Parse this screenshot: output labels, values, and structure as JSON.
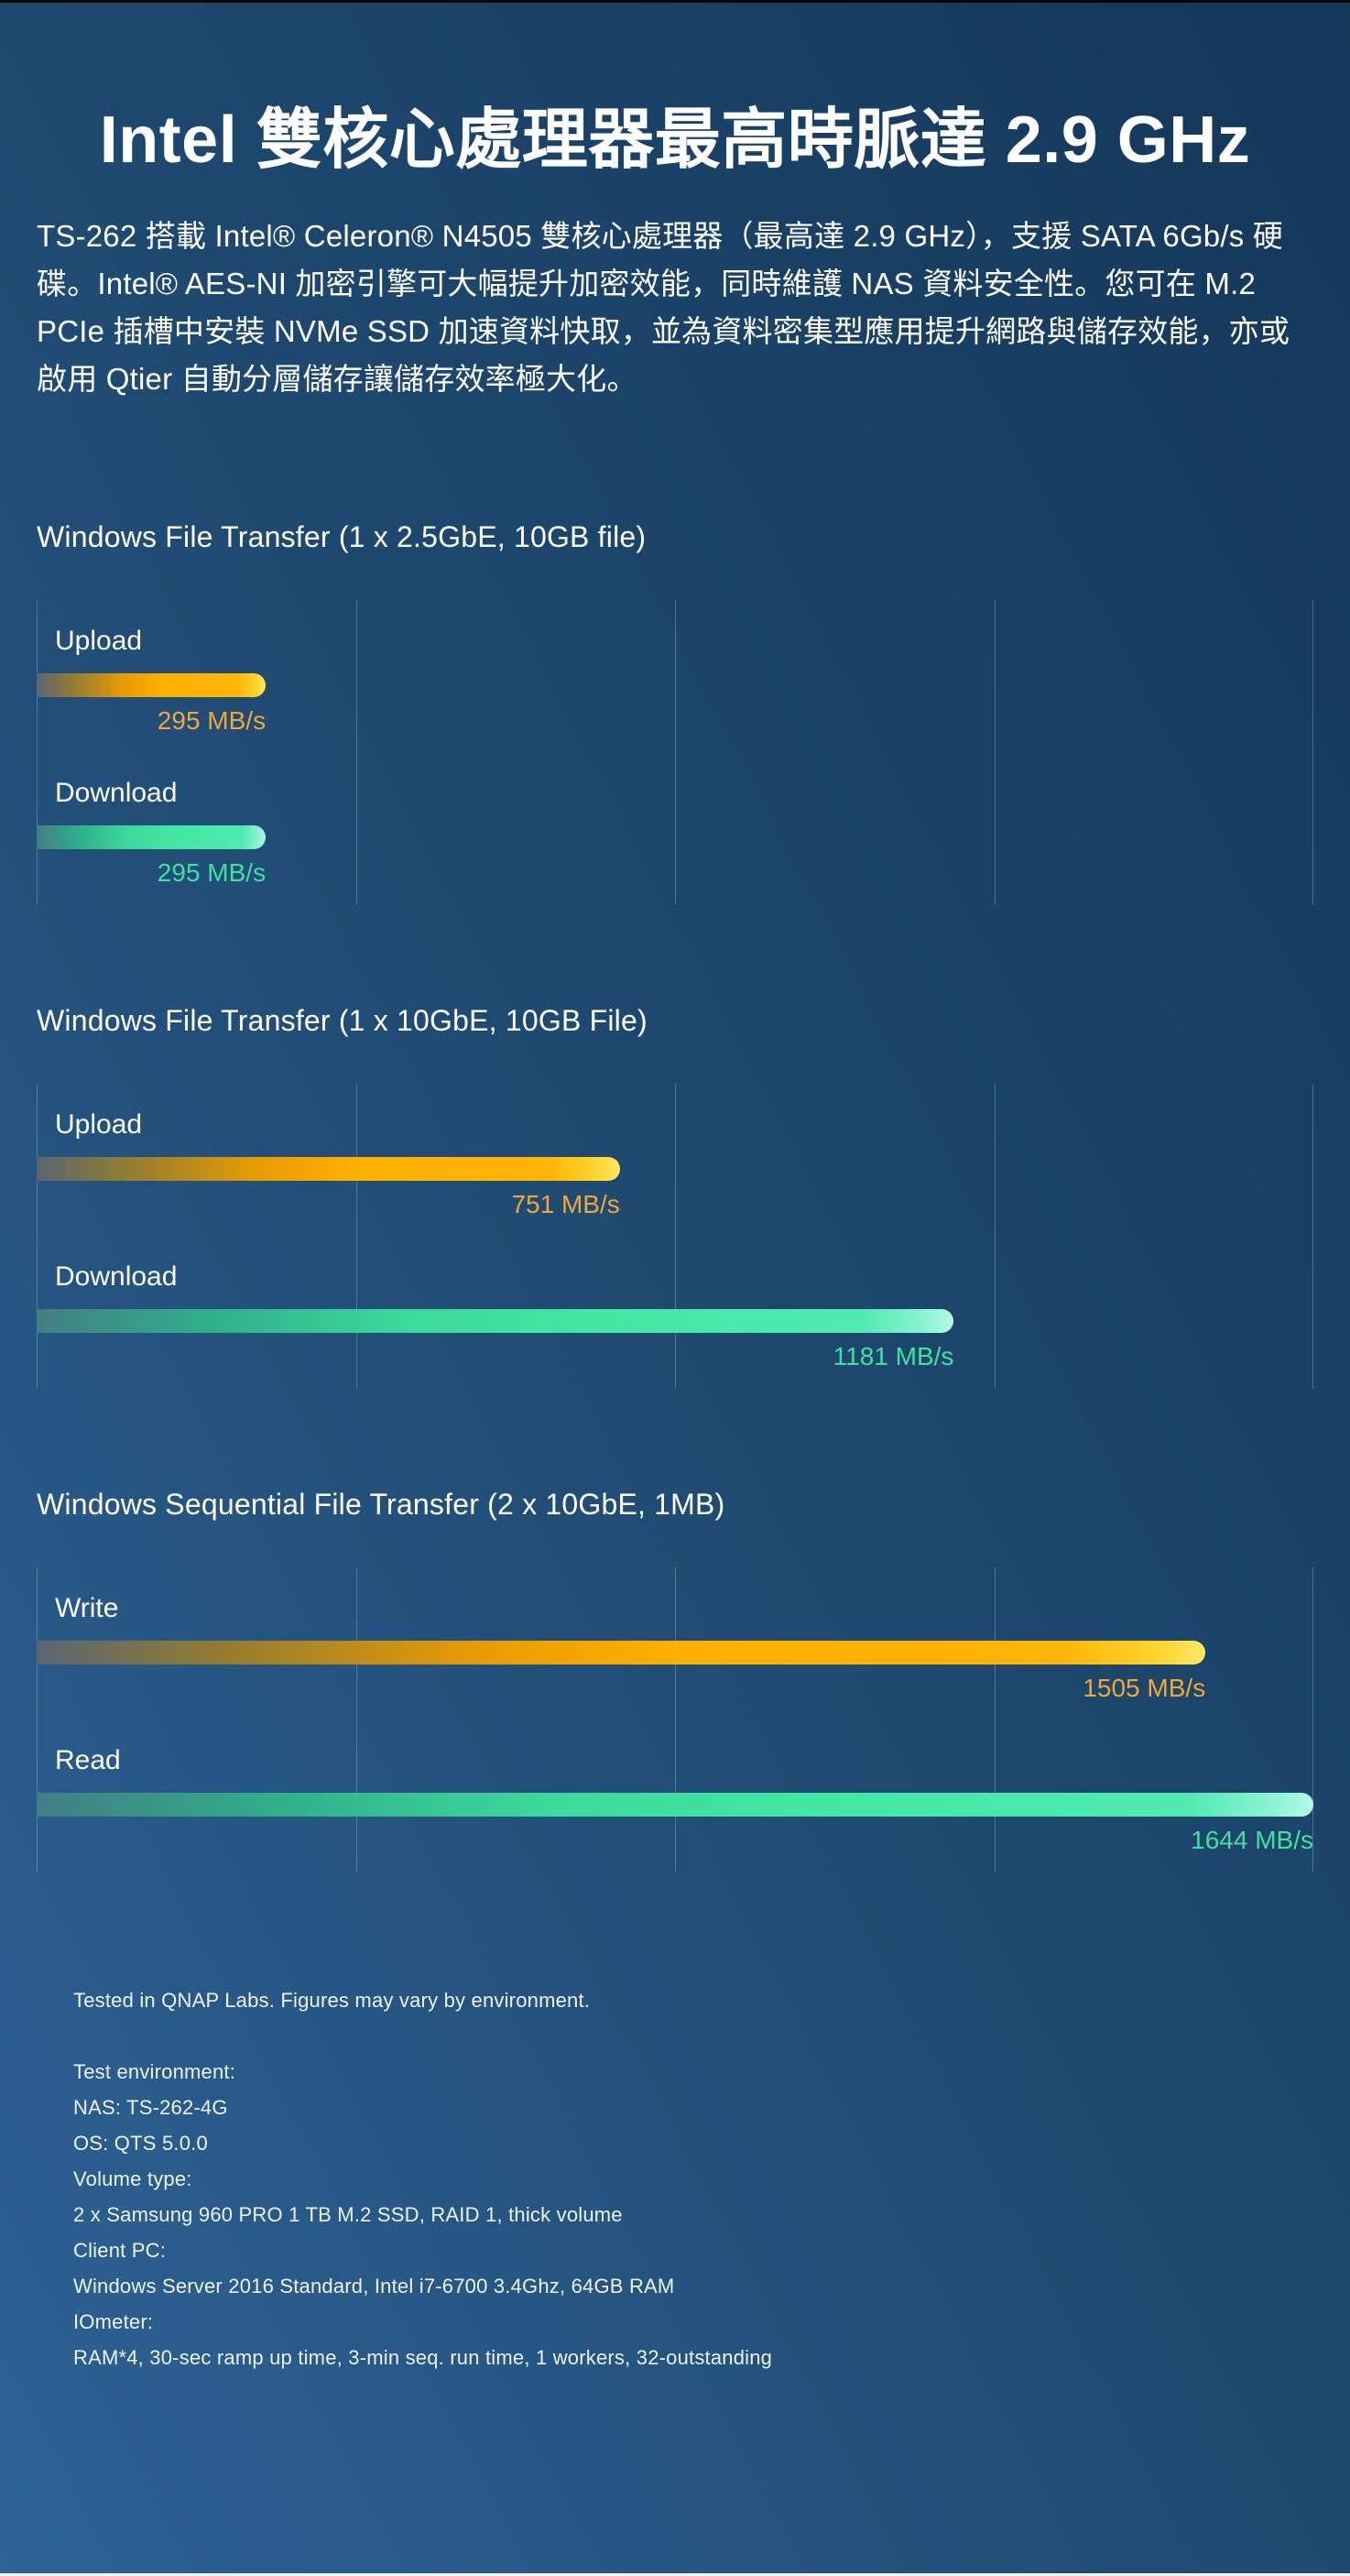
{
  "page": {
    "title": "Intel 雙核心處理器最高時脈達 2.9 GHz",
    "intro": "TS-262 搭載 Intel® Celeron® N4505 雙核心處理器（最高達 2.9 GHz），支援 SATA 6Gb/s 硬碟。Intel® AES-NI 加密引擎可大幅提升加密效能，同時維護 NAS 資料安全性。您可在 M.2 PCIe 插槽中安裝 NVMe SSD 加速資料快取，並為資料密集型應用提升網路與儲存效能，亦或啟用 Qtier 自動分層儲存讓儲存效率極大化。"
  },
  "chart_data": [
    {
      "type": "bar",
      "orientation": "horizontal",
      "title": "Windows File Transfer (1 x 2.5GbE, 10GB file)",
      "categories": [
        "Upload",
        "Download"
      ],
      "values": [
        295,
        295
      ],
      "value_labels": [
        "295 MB/s",
        "295 MB/s"
      ],
      "bar_colors": [
        "orange",
        "teal"
      ],
      "unit": "MB/s",
      "xlim": [
        0,
        1644
      ],
      "gridlines_percent": [
        0,
        25,
        50,
        75,
        100
      ],
      "legend": "none"
    },
    {
      "type": "bar",
      "orientation": "horizontal",
      "title": "Windows File Transfer (1 x 10GbE, 10GB File)",
      "categories": [
        "Upload",
        "Download"
      ],
      "values": [
        751,
        1181
      ],
      "value_labels": [
        "751 MB/s",
        "1181 MB/s"
      ],
      "bar_colors": [
        "orange",
        "teal"
      ],
      "unit": "MB/s",
      "xlim": [
        0,
        1644
      ],
      "gridlines_percent": [
        0,
        25,
        50,
        75,
        100
      ],
      "legend": "none"
    },
    {
      "type": "bar",
      "orientation": "horizontal",
      "title": "Windows Sequential File Transfer (2 x 10GbE, 1MB)",
      "categories": [
        "Write",
        "Read"
      ],
      "values": [
        1505,
        1644
      ],
      "value_labels": [
        "1505 MB/s",
        "1644 MB/s"
      ],
      "bar_colors": [
        "orange",
        "teal"
      ],
      "unit": "MB/s",
      "xlim": [
        0,
        1644
      ],
      "gridlines_percent": [
        0,
        25,
        50,
        75,
        100
      ],
      "legend": "none"
    }
  ],
  "footer": {
    "note": "Tested in QNAP Labs. Figures may vary by environment.",
    "environment_lines": [
      "Test environment:",
      "NAS: TS-262-4G",
      "OS: QTS 5.0.0",
      "Volume type:",
      "2 x Samsung 960 PRO 1 TB M.2 SSD, RAID 1, thick volume",
      "Client PC:",
      "Windows Server 2016 Standard, Intel i7-6700 3.4Ghz, 64GB RAM",
      "IOmeter:",
      "RAM*4, 30-sec ramp up time, 3-min seq. run time, 1 workers, 32-outstanding"
    ]
  },
  "colors": {
    "background_top": "#14375a",
    "background_bottom": "#2e6396",
    "accent_orange": "#ffb000",
    "accent_teal": "#45e6a4",
    "orange_label": "#f0a73a",
    "teal_label": "#41e19c"
  }
}
